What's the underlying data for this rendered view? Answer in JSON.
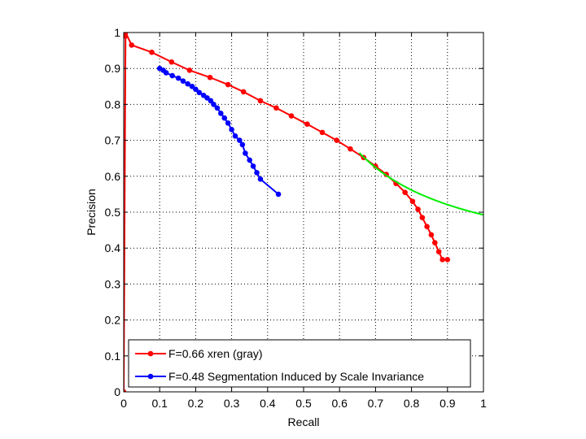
{
  "chart_data": {
    "type": "line",
    "title": "",
    "xlabel": "Recall",
    "ylabel": "Precision",
    "xlim": [
      0,
      1
    ],
    "ylim": [
      0,
      1
    ],
    "xticks": [
      0,
      0.1,
      0.2,
      0.3,
      0.4,
      0.5,
      0.6,
      0.7,
      0.8,
      0.9,
      1
    ],
    "yticks": [
      0,
      0.1,
      0.2,
      0.3,
      0.4,
      0.5,
      0.6,
      0.7,
      0.8,
      0.9,
      1
    ],
    "xtick_labels": [
      "0",
      "0.1",
      "0.2",
      "0.3",
      "0.4",
      "0.5",
      "0.6",
      "0.7",
      "0.8",
      "0.9",
      "1"
    ],
    "ytick_labels": [
      "0",
      "0.1",
      "0.2",
      "0.3",
      "0.4",
      "0.5",
      "0.6",
      "0.7",
      "0.8",
      "0.9",
      "1"
    ],
    "grid": true,
    "legend_position": "bottom-left",
    "series": [
      {
        "name": "F=0.66 xren (gray)",
        "color": "#ff0000",
        "marker": "dot",
        "x": [
          0,
          0.005,
          0.005,
          0.022,
          0.078,
          0.133,
          0.183,
          0.24,
          0.29,
          0.333,
          0.38,
          0.424,
          0.466,
          0.51,
          0.552,
          0.592,
          0.63,
          0.667,
          0.7,
          0.73,
          0.757,
          0.782,
          0.803,
          0.818,
          0.83,
          0.843,
          0.855,
          0.865,
          0.876,
          0.886,
          0.9
        ],
        "y": [
          0,
          0.99,
          1.0,
          0.965,
          0.945,
          0.918,
          0.895,
          0.875,
          0.855,
          0.835,
          0.81,
          0.79,
          0.768,
          0.745,
          0.722,
          0.7,
          0.676,
          0.652,
          0.628,
          0.605,
          0.58,
          0.555,
          0.53,
          0.508,
          0.485,
          0.46,
          0.437,
          0.415,
          0.39,
          0.368,
          0.368
        ]
      },
      {
        "name": "F=0.48 Segmentation Induced by Scale Invariance",
        "color": "#0000ff",
        "marker": "dot",
        "x": [
          0.1,
          0.11,
          0.118,
          0.135,
          0.152,
          0.165,
          0.178,
          0.19,
          0.2,
          0.21,
          0.222,
          0.232,
          0.242,
          0.25,
          0.26,
          0.27,
          0.28,
          0.29,
          0.3,
          0.31,
          0.322,
          0.33,
          0.338,
          0.35,
          0.36,
          0.37,
          0.38,
          0.43
        ],
        "y": [
          0.9,
          0.895,
          0.888,
          0.88,
          0.873,
          0.865,
          0.857,
          0.85,
          0.842,
          0.833,
          0.825,
          0.818,
          0.81,
          0.8,
          0.79,
          0.775,
          0.762,
          0.748,
          0.73,
          0.712,
          0.7,
          0.688,
          0.664,
          0.645,
          0.628,
          0.61,
          0.592,
          0.55
        ]
      },
      {
        "name": "",
        "color": "#00ee00",
        "marker": "none",
        "isoF": 0.66,
        "x_range": [
          0.655,
          1.0
        ]
      }
    ]
  }
}
